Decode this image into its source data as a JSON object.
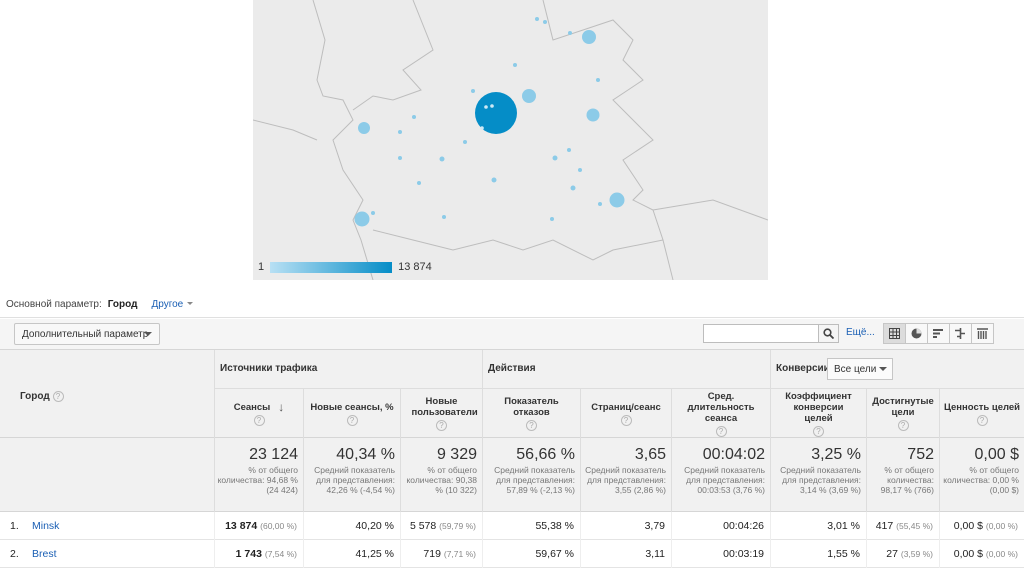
{
  "map": {
    "legend_min": "1",
    "legend_max": "13 874",
    "accent_color": "#058dc7",
    "light_color": "#8ccbe8"
  },
  "dimension": {
    "label": "Основной параметр:",
    "selected": "Город",
    "other": "Другое"
  },
  "toolbar": {
    "secondary_dimension": "Дополнительный параметр",
    "search_placeholder": "",
    "more": "Ещё..."
  },
  "table": {
    "city_header": "Город",
    "groups": {
      "acquisition": "Источники трафика",
      "behavior": "Действия",
      "conversions": "Конверсии",
      "goals_select": "Все цели"
    },
    "metrics": {
      "sessions": "Сеансы",
      "new_sessions_pct": "Новые сеансы, %",
      "new_users": "Новые пользователи",
      "bounce_rate": "Показатель отказов",
      "pages_per_session": "Страниц/сеанс",
      "avg_duration": "Сред. длительность сеанса",
      "conv_rate": "Коэффициент конверсии целей",
      "goal_completions": "Достигнутые цели",
      "goal_value": "Ценность целей"
    },
    "totals": {
      "sessions": {
        "big": "23 124",
        "sm": "% от общего количества: 94,68 % (24 424)"
      },
      "new_sessions_pct": {
        "big": "40,34 %",
        "sm": "Средний показатель для представления: 42,26 % (-4,54 %)"
      },
      "new_users": {
        "big": "9 329",
        "sm": "% от общего количества: 90,38 % (10 322)"
      },
      "bounce_rate": {
        "big": "56,66 %",
        "sm": "Средний показатель для представления: 57,89 % (-2,13 %)"
      },
      "pages_per_session": {
        "big": "3,65",
        "sm": "Средний показатель для представления: 3,55 (2,86 %)"
      },
      "avg_duration": {
        "big": "00:04:02",
        "sm": "Средний показатель для представления: 00:03:53 (3,76 %)"
      },
      "conv_rate": {
        "big": "3,25 %",
        "sm": "Средний показатель для представления: 3,14 % (3,69 %)"
      },
      "goal_completions": {
        "big": "752",
        "sm": "% от общего количества: 98,17 % (766)"
      },
      "goal_value": {
        "big": "0,00 $",
        "sm": "% от общего количества: 0,00 % (0,00 $)"
      }
    },
    "rows": [
      {
        "idx": "1.",
        "city": "Minsk",
        "sessions": "13 874",
        "sessions_pct": "(60,00 %)",
        "new_sessions_pct": "40,20 %",
        "new_users": "5 578",
        "new_users_pct": "(59,79 %)",
        "bounce_rate": "55,38 %",
        "pages": "3,79",
        "duration": "00:04:26",
        "conv_rate": "3,01 %",
        "goals": "417",
        "goals_pct": "(55,45 %)",
        "value": "0,00 $",
        "value_pct": "(0,00 %)"
      },
      {
        "idx": "2.",
        "city": "Brest",
        "sessions": "1 743",
        "sessions_pct": "(7,54 %)",
        "new_sessions_pct": "41,25 %",
        "new_users": "719",
        "new_users_pct": "(7,71 %)",
        "bounce_rate": "59,67 %",
        "pages": "3,11",
        "duration": "00:03:19",
        "conv_rate": "1,55 %",
        "goals": "27",
        "goals_pct": "(3,59 %)",
        "value": "0,00 $",
        "value_pct": "(0,00 %)"
      }
    ]
  }
}
